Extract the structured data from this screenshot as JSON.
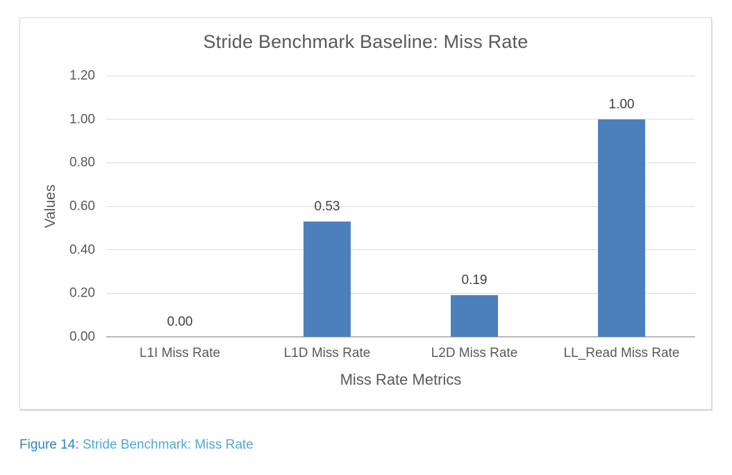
{
  "chart_data": {
    "type": "bar",
    "title": "Stride Benchmark Baseline: Miss Rate",
    "xlabel": "Miss Rate Metrics",
    "ylabel": "Values",
    "categories": [
      "L1I Miss Rate",
      "L1D Miss Rate",
      "L2D Miss Rate",
      "LL_Read Miss Rate"
    ],
    "values": [
      0.0,
      0.53,
      0.19,
      1.0
    ],
    "data_labels": [
      "0.00",
      "0.53",
      "0.19",
      "1.00"
    ],
    "ytick_values": [
      0.0,
      0.2,
      0.4,
      0.6,
      0.8,
      1.0,
      1.2
    ],
    "ytick_labels": [
      "0.00",
      "0.20",
      "0.40",
      "0.60",
      "0.80",
      "1.00",
      "1.20"
    ],
    "ylim": [
      0,
      1.2
    ],
    "grid": true,
    "legend": false,
    "colors": {
      "bar": "#4c80bc",
      "gridline": "#d9d9d9",
      "axis_line": "#b9b9b9",
      "axis_text": "#595959",
      "data_label_text": "#3f3f3f"
    }
  },
  "caption": {
    "label": "Figure 14:",
    "text": " Stride Benchmark: Miss Rate",
    "label_color": "#2e86bb",
    "text_color": "#4da9d6"
  }
}
